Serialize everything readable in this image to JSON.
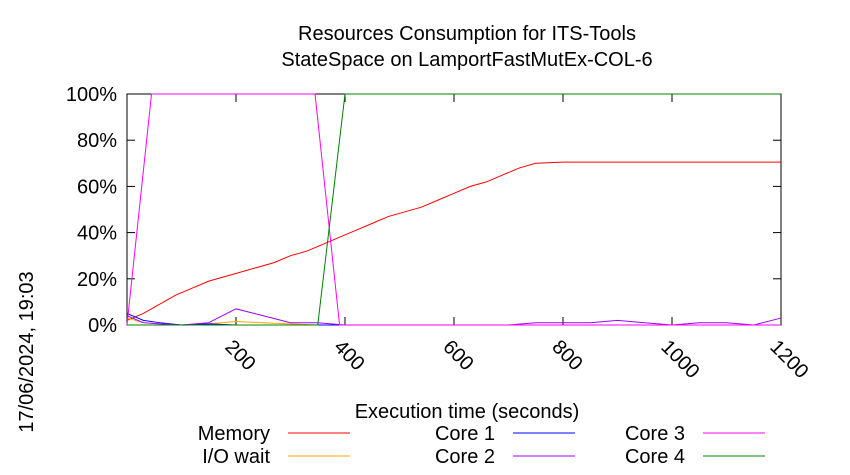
{
  "chart_data": {
    "type": "line",
    "title_lines": [
      "Resources Consumption for ITS-Tools",
      "StateSpace on LamportFastMutEx-COL-6"
    ],
    "xlabel": "Execution time (seconds)",
    "ylabel": "",
    "timestamp": "17/06/2024, 19:03",
    "xlim": [
      0,
      1200
    ],
    "ylim": [
      0,
      100
    ],
    "xticks": [
      200,
      400,
      600,
      800,
      1000,
      1200
    ],
    "yticks": [
      0,
      20,
      40,
      60,
      80,
      100
    ],
    "ytick_labels": [
      "0%",
      "20%",
      "40%",
      "60%",
      "80%",
      "100%"
    ],
    "grid": false,
    "legend_position": "bottom",
    "series": [
      {
        "name": "Memory",
        "color": "#ff0000",
        "x": [
          0,
          30,
          60,
          90,
          120,
          150,
          180,
          210,
          240,
          270,
          300,
          330,
          360,
          390,
          420,
          450,
          480,
          510,
          540,
          570,
          600,
          630,
          660,
          690,
          720,
          750,
          800,
          900,
          1000,
          1100,
          1200
        ],
        "y": [
          2,
          5,
          9,
          13,
          16,
          19,
          21,
          23,
          25,
          27,
          30,
          32,
          35,
          38,
          41,
          44,
          47,
          49,
          51,
          54,
          57,
          60,
          62,
          65,
          68,
          70,
          70.5,
          70.5,
          70.5,
          70.5,
          70.5
        ]
      },
      {
        "name": "I/O wait",
        "color": "#ffa500",
        "x": [
          0,
          30,
          60,
          100,
          150,
          200,
          250,
          300,
          350,
          400,
          1200
        ],
        "y": [
          3,
          1,
          0.5,
          0,
          0.5,
          1.5,
          1,
          0.5,
          0,
          0,
          0
        ]
      },
      {
        "name": "Core 1",
        "color": "#0000ff",
        "x": [
          0,
          30,
          60,
          100,
          150,
          200,
          250,
          300,
          1200
        ],
        "y": [
          5,
          2,
          1,
          0,
          0.5,
          0,
          0,
          0,
          0
        ]
      },
      {
        "name": "Core 2",
        "color": "#a000ff",
        "x": [
          0,
          30,
          60,
          100,
          150,
          200,
          250,
          300,
          350,
          400,
          500,
          600,
          700,
          750,
          800,
          850,
          900,
          950,
          1000,
          1050,
          1100,
          1150,
          1200
        ],
        "y": [
          4,
          1,
          0.5,
          0,
          1,
          7,
          4,
          1,
          1,
          0,
          0,
          0,
          0,
          1,
          1,
          1,
          2,
          1,
          0,
          1,
          1,
          0,
          3
        ]
      },
      {
        "name": "Core 3",
        "color": "#ff00ff",
        "x": [
          0,
          45,
          60,
          100,
          200,
          300,
          345,
          390,
          400,
          1200
        ],
        "y": [
          0,
          100,
          100,
          100,
          100,
          100,
          100,
          0,
          0,
          0
        ]
      },
      {
        "name": "Core 4",
        "color": "#008000",
        "x": [
          0,
          300,
          350,
          400,
          450,
          600,
          800,
          1000,
          1200
        ],
        "y": [
          0,
          0,
          0,
          100,
          100,
          100,
          100,
          100,
          100
        ]
      }
    ]
  }
}
